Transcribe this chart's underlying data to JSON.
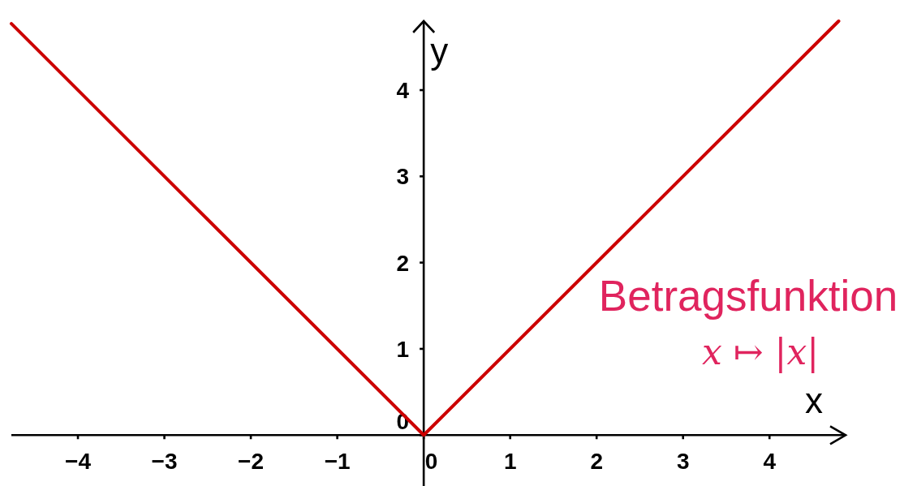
{
  "chart_data": {
    "type": "line",
    "xlabel": "x",
    "ylabel": "y",
    "annotations": [
      "Betragsfunktion",
      "x ↦ |x|"
    ],
    "x": [
      -4.77,
      0,
      4.8
    ],
    "series": [
      {
        "color": "#cc0000",
        "values": [
          4.77,
          0,
          4.8
        ]
      }
    ],
    "xlim": [
      -4.77,
      4.88
    ],
    "ylim": [
      -0.59,
      4.8
    ],
    "xticks": [
      {
        "value": -4,
        "label": "−4"
      },
      {
        "value": -3,
        "label": "−3"
      },
      {
        "value": -2,
        "label": "−2"
      },
      {
        "value": -1,
        "label": "−1"
      },
      0,
      1,
      2,
      3,
      4
    ],
    "yticks": [
      0,
      1,
      2,
      3,
      4
    ]
  }
}
